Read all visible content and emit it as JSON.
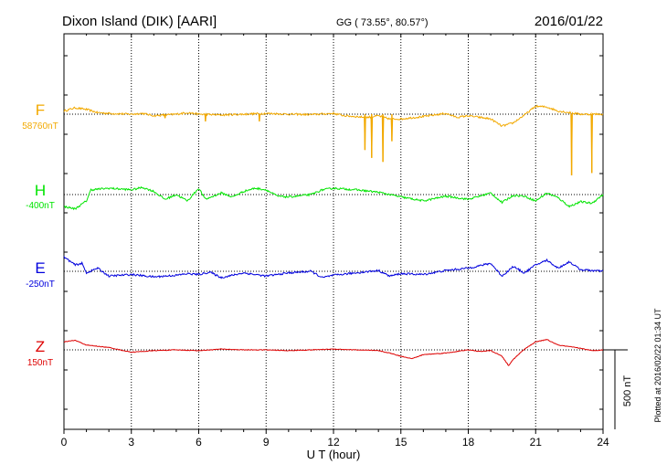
{
  "header": {
    "title": "Dixon Island (DIK)  [AARI]",
    "coords": "GG ( 73.55°,  80.57°)",
    "date": "2016/01/22"
  },
  "footer": {
    "plotted_at": "Plotted at 2016/02/22 01:34  UT"
  },
  "scale_bar": {
    "label": "500 nT",
    "value_nT": 500
  },
  "colors": {
    "F": "#f2a900",
    "H": "#00e400",
    "E": "#0000dd",
    "Z": "#dd0000",
    "grid": "#000000"
  },
  "chart_data": {
    "type": "line",
    "xlabel": "U T (hour)",
    "xlim": [
      0,
      24
    ],
    "xticks": [
      0,
      3,
      6,
      9,
      12,
      15,
      18,
      21,
      24
    ],
    "channels": [
      {
        "name": "F",
        "baseline_label": "58760nT",
        "color": "#f2a900",
        "points": [
          [
            0,
            40
          ],
          [
            0.5,
            80
          ],
          [
            1,
            60
          ],
          [
            1.5,
            20
          ],
          [
            2,
            10
          ],
          [
            3,
            0
          ],
          [
            3.5,
            10
          ],
          [
            4,
            -20
          ],
          [
            5,
            0
          ],
          [
            5.5,
            20
          ],
          [
            6,
            0
          ],
          [
            7,
            -10
          ],
          [
            8,
            0
          ],
          [
            9,
            10
          ],
          [
            10,
            0
          ],
          [
            11,
            -5
          ],
          [
            12,
            10
          ],
          [
            12.5,
            -20
          ],
          [
            13,
            -30
          ],
          [
            13.5,
            -40
          ],
          [
            14,
            -20
          ],
          [
            14.5,
            -60
          ],
          [
            15,
            -60
          ],
          [
            16,
            -30
          ],
          [
            17,
            10
          ],
          [
            17.5,
            -40
          ],
          [
            18,
            -20
          ],
          [
            19,
            -60
          ],
          [
            19.5,
            -150
          ],
          [
            20,
            -110
          ],
          [
            20.5,
            -10
          ],
          [
            21,
            100
          ],
          [
            21.5,
            90
          ],
          [
            22,
            40
          ],
          [
            23,
            0
          ],
          [
            24,
            0
          ]
        ],
        "spikes": [
          [
            4.5,
            -50
          ],
          [
            6.3,
            -90
          ],
          [
            8.7,
            -90
          ],
          [
            13.4,
            -450
          ],
          [
            13.7,
            -550
          ],
          [
            14.2,
            -600
          ],
          [
            14.6,
            -340
          ],
          [
            22.6,
            -770
          ],
          [
            23.5,
            -740
          ]
        ]
      },
      {
        "name": "H",
        "baseline_label": "-400nT",
        "color": "#00e400",
        "points": [
          [
            0,
            -150
          ],
          [
            0.5,
            -180
          ],
          [
            1,
            -80
          ],
          [
            1.2,
            60
          ],
          [
            2,
            80
          ],
          [
            3,
            60
          ],
          [
            3.5,
            90
          ],
          [
            4,
            40
          ],
          [
            4.5,
            -60
          ],
          [
            5,
            0
          ],
          [
            5.5,
            -80
          ],
          [
            6,
            80
          ],
          [
            6.3,
            -60
          ],
          [
            7,
            20
          ],
          [
            7.5,
            -30
          ],
          [
            8,
            40
          ],
          [
            8.5,
            80
          ],
          [
            9,
            60
          ],
          [
            9.5,
            -20
          ],
          [
            10,
            -30
          ],
          [
            11,
            0
          ],
          [
            11.5,
            60
          ],
          [
            12,
            80
          ],
          [
            13,
            60
          ],
          [
            14,
            30
          ],
          [
            15,
            -30
          ],
          [
            16,
            -80
          ],
          [
            17,
            -20
          ],
          [
            18,
            -60
          ],
          [
            19,
            20
          ],
          [
            19.5,
            -100
          ],
          [
            20,
            -10
          ],
          [
            20.5,
            -20
          ],
          [
            21,
            -80
          ],
          [
            21.5,
            20
          ],
          [
            22,
            -40
          ],
          [
            22.5,
            -150
          ],
          [
            23,
            -90
          ],
          [
            23.5,
            -110
          ],
          [
            24,
            0
          ]
        ]
      },
      {
        "name": "E",
        "baseline_label": "-250nT",
        "color": "#0000dd",
        "points": [
          [
            0,
            180
          ],
          [
            0.5,
            80
          ],
          [
            0.8,
            100
          ],
          [
            1,
            -20
          ],
          [
            1.5,
            40
          ],
          [
            2,
            -60
          ],
          [
            3,
            -40
          ],
          [
            4,
            -70
          ],
          [
            5,
            -50
          ],
          [
            5.5,
            -30
          ],
          [
            6,
            -40
          ],
          [
            6.5,
            -10
          ],
          [
            7,
            -80
          ],
          [
            7.5,
            -50
          ],
          [
            8,
            -20
          ],
          [
            9,
            -60
          ],
          [
            10,
            -20
          ],
          [
            11,
            0
          ],
          [
            11.5,
            -80
          ],
          [
            12,
            -50
          ],
          [
            13,
            -20
          ],
          [
            14,
            10
          ],
          [
            14.5,
            -60
          ],
          [
            15,
            -30
          ],
          [
            16,
            -40
          ],
          [
            17,
            10
          ],
          [
            18,
            40
          ],
          [
            18.5,
            70
          ],
          [
            19,
            100
          ],
          [
            19.5,
            -60
          ],
          [
            20,
            60
          ],
          [
            20.5,
            -20
          ],
          [
            21,
            80
          ],
          [
            21.5,
            140
          ],
          [
            22,
            40
          ],
          [
            22.5,
            120
          ],
          [
            23,
            20
          ],
          [
            24,
            0
          ]
        ]
      },
      {
        "name": "Z",
        "baseline_label": "150nT",
        "color": "#dd0000",
        "points": [
          [
            0,
            100
          ],
          [
            0.5,
            120
          ],
          [
            1,
            60
          ],
          [
            2,
            30
          ],
          [
            2.5,
            0
          ],
          [
            3,
            -30
          ],
          [
            3.5,
            -20
          ],
          [
            4,
            -10
          ],
          [
            5,
            0
          ],
          [
            6,
            -10
          ],
          [
            7,
            10
          ],
          [
            8,
            0
          ],
          [
            9,
            0
          ],
          [
            10,
            -10
          ],
          [
            11,
            0
          ],
          [
            12,
            10
          ],
          [
            13,
            0
          ],
          [
            14,
            -10
          ],
          [
            14.5,
            -40
          ],
          [
            15,
            -80
          ],
          [
            15.5,
            -110
          ],
          [
            16,
            -60
          ],
          [
            17,
            -40
          ],
          [
            18,
            0
          ],
          [
            18.5,
            -20
          ],
          [
            19,
            -10
          ],
          [
            19.5,
            -80
          ],
          [
            19.8,
            -200
          ],
          [
            20,
            -120
          ],
          [
            20.5,
            10
          ],
          [
            21,
            100
          ],
          [
            21.5,
            130
          ],
          [
            22,
            60
          ],
          [
            22.5,
            40
          ],
          [
            23,
            20
          ],
          [
            23.5,
            -10
          ],
          [
            24,
            0
          ]
        ]
      }
    ]
  }
}
